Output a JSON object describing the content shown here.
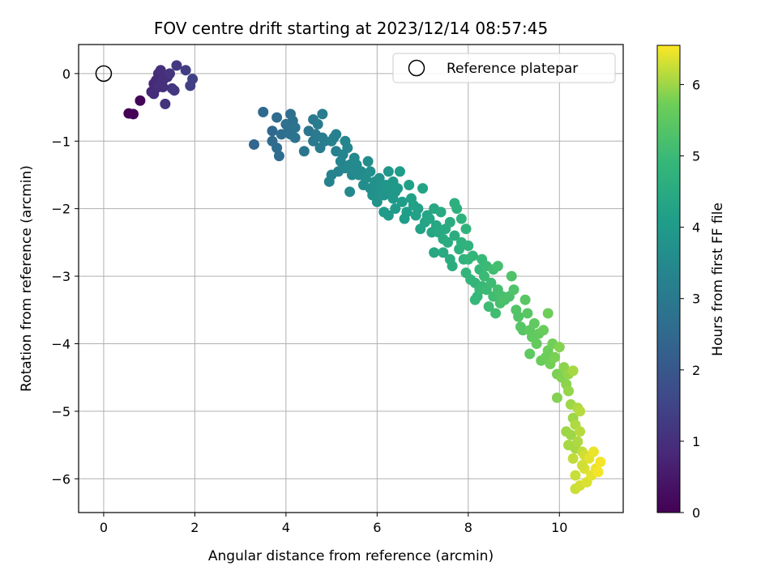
{
  "chart_data": {
    "type": "scatter",
    "title": "FOV centre drift starting at 2023/12/14 08:57:45",
    "xlabel": "Angular distance from reference (arcmin)",
    "ylabel": "Rotation from reference (arcmin)",
    "xlim": [
      -0.55,
      11.4
    ],
    "ylim": [
      -6.5,
      0.43
    ],
    "xticks": [
      0,
      2,
      4,
      6,
      8,
      10
    ],
    "yticks": [
      0,
      -1,
      -2,
      -3,
      -4,
      -5,
      -6
    ],
    "grid": true,
    "legend": {
      "location": "top-right",
      "entries": [
        "Reference platepar"
      ]
    },
    "colorbar": {
      "label": "Hours from first FF file",
      "range": [
        0,
        6.55
      ],
      "ticks": [
        0,
        1,
        2,
        3,
        4,
        5,
        6
      ],
      "colormap": "viridis"
    },
    "reference_point": {
      "name": "Reference platepar",
      "x": 0,
      "y": 0
    },
    "series": [
      {
        "points": [
          [
            0.55,
            -0.59,
            0.0
          ],
          [
            0.65,
            -0.6,
            0.05
          ],
          [
            0.8,
            -0.4,
            0.1
          ],
          [
            1.05,
            -0.27,
            0.8
          ],
          [
            1.1,
            -0.15,
            0.9
          ],
          [
            1.2,
            0.0,
            0.95
          ],
          [
            1.15,
            -0.1,
            0.9
          ],
          [
            1.25,
            0.05,
            1.0
          ],
          [
            1.3,
            -0.1,
            1.0
          ],
          [
            1.35,
            -0.45,
            1.05
          ],
          [
            1.4,
            -0.05,
            1.0
          ],
          [
            1.45,
            0.0,
            1.1
          ],
          [
            1.5,
            -0.22,
            1.15
          ],
          [
            1.55,
            -0.25,
            1.2
          ],
          [
            1.6,
            0.12,
            1.2
          ],
          [
            1.2,
            -0.2,
            1.0
          ],
          [
            1.1,
            -0.3,
            0.95
          ],
          [
            1.3,
            -0.2,
            1.0
          ],
          [
            1.8,
            0.05,
            1.3
          ],
          [
            1.9,
            -0.18,
            1.4
          ],
          [
            1.95,
            -0.08,
            1.4
          ],
          [
            3.3,
            -1.05,
            2.4
          ],
          [
            3.5,
            -0.57,
            2.5
          ],
          [
            3.7,
            -0.85,
            2.5
          ],
          [
            3.7,
            -1.0,
            2.55
          ],
          [
            3.8,
            -0.65,
            2.6
          ],
          [
            3.8,
            -1.1,
            2.6
          ],
          [
            3.85,
            -1.22,
            2.6
          ],
          [
            3.9,
            -0.9,
            2.65
          ],
          [
            4.0,
            -0.75,
            2.7
          ],
          [
            4.05,
            -0.85,
            2.7
          ],
          [
            4.1,
            -0.6,
            2.7
          ],
          [
            4.1,
            -0.9,
            2.75
          ],
          [
            4.15,
            -0.7,
            2.75
          ],
          [
            4.2,
            -0.8,
            2.8
          ],
          [
            4.2,
            -0.95,
            2.8
          ],
          [
            4.4,
            -1.15,
            2.9
          ],
          [
            4.5,
            -0.85,
            2.9
          ],
          [
            4.6,
            -0.68,
            3.0
          ],
          [
            4.6,
            -1.0,
            3.0
          ],
          [
            4.65,
            -0.9,
            3.0
          ],
          [
            4.7,
            -0.75,
            3.05
          ],
          [
            4.75,
            -1.1,
            3.05
          ],
          [
            4.8,
            -0.6,
            3.1
          ],
          [
            4.8,
            -0.95,
            3.1
          ],
          [
            4.85,
            -1.0,
            3.1
          ],
          [
            5.0,
            -1.0,
            3.2
          ],
          [
            5.05,
            -0.95,
            3.2
          ],
          [
            5.1,
            -0.9,
            3.2
          ],
          [
            5.1,
            -1.15,
            3.25
          ],
          [
            4.95,
            -1.6,
            3.3
          ],
          [
            5.0,
            -1.5,
            3.3
          ],
          [
            5.15,
            -1.45,
            3.3
          ],
          [
            5.2,
            -1.3,
            3.35
          ],
          [
            5.25,
            -1.2,
            3.35
          ],
          [
            5.3,
            -1.0,
            3.4
          ],
          [
            5.3,
            -1.4,
            3.4
          ],
          [
            5.35,
            -1.1,
            3.4
          ],
          [
            5.4,
            -1.75,
            3.45
          ],
          [
            5.4,
            -1.35,
            3.45
          ],
          [
            5.45,
            -1.5,
            3.45
          ],
          [
            5.5,
            -1.25,
            3.5
          ],
          [
            5.5,
            -1.45,
            3.5
          ],
          [
            5.55,
            -1.35,
            3.5
          ],
          [
            5.6,
            -1.5,
            3.55
          ],
          [
            5.65,
            -1.45,
            3.55
          ],
          [
            5.7,
            -1.65,
            3.6
          ],
          [
            5.75,
            -1.55,
            3.6
          ],
          [
            5.8,
            -1.3,
            3.6
          ],
          [
            5.85,
            -1.45,
            3.65
          ],
          [
            5.85,
            -1.7,
            3.65
          ],
          [
            5.9,
            -1.8,
            3.7
          ],
          [
            5.95,
            -1.6,
            3.7
          ],
          [
            6.0,
            -1.75,
            3.7
          ],
          [
            6.0,
            -1.9,
            3.75
          ],
          [
            6.05,
            -1.55,
            3.75
          ],
          [
            6.1,
            -1.7,
            3.8
          ],
          [
            6.15,
            -1.8,
            3.8
          ],
          [
            6.2,
            -1.65,
            3.85
          ],
          [
            6.25,
            -1.45,
            3.85
          ],
          [
            6.3,
            -1.75,
            3.9
          ],
          [
            6.35,
            -1.6,
            3.9
          ],
          [
            6.4,
            -1.75,
            3.9
          ],
          [
            6.45,
            -1.7,
            3.95
          ],
          [
            6.35,
            -1.85,
            3.95
          ],
          [
            6.15,
            -2.05,
            4.0
          ],
          [
            6.25,
            -2.1,
            4.0
          ],
          [
            6.4,
            -2.0,
            4.0
          ],
          [
            6.5,
            -1.45,
            4.05
          ],
          [
            6.55,
            -1.9,
            4.05
          ],
          [
            6.6,
            -2.15,
            4.1
          ],
          [
            6.65,
            -2.05,
            4.1
          ],
          [
            6.7,
            -1.65,
            4.15
          ],
          [
            6.75,
            -1.85,
            4.15
          ],
          [
            6.8,
            -1.95,
            4.2
          ],
          [
            6.85,
            -2.1,
            4.2
          ],
          [
            6.9,
            -2.0,
            4.2
          ],
          [
            6.95,
            -2.3,
            4.25
          ],
          [
            7.0,
            -1.7,
            4.25
          ],
          [
            7.05,
            -2.2,
            4.3
          ],
          [
            7.1,
            -2.1,
            4.3
          ],
          [
            7.15,
            -2.15,
            4.35
          ],
          [
            7.2,
            -2.35,
            4.35
          ],
          [
            7.25,
            -2.0,
            4.4
          ],
          [
            7.25,
            -2.65,
            4.4
          ],
          [
            7.3,
            -2.25,
            4.4
          ],
          [
            7.35,
            -2.35,
            4.45
          ],
          [
            7.4,
            -2.05,
            4.45
          ],
          [
            7.45,
            -2.45,
            4.5
          ],
          [
            7.45,
            -2.65,
            4.5
          ],
          [
            7.5,
            -2.3,
            4.5
          ],
          [
            7.55,
            -2.5,
            4.55
          ],
          [
            7.6,
            -2.2,
            4.55
          ],
          [
            7.6,
            -2.75,
            4.6
          ],
          [
            7.65,
            -2.85,
            4.6
          ],
          [
            7.7,
            -2.4,
            4.6
          ],
          [
            7.7,
            -1.92,
            4.65
          ],
          [
            7.75,
            -2.0,
            4.65
          ],
          [
            7.8,
            -2.6,
            4.7
          ],
          [
            7.85,
            -2.5,
            4.7
          ],
          [
            7.85,
            -2.15,
            4.7
          ],
          [
            7.9,
            -2.75,
            4.75
          ],
          [
            7.95,
            -2.3,
            4.75
          ],
          [
            8.0,
            -2.55,
            4.75
          ],
          [
            8.0,
            -2.75,
            4.8
          ],
          [
            7.95,
            -2.95,
            4.8
          ],
          [
            8.05,
            -3.05,
            4.85
          ],
          [
            8.1,
            -2.7,
            4.85
          ],
          [
            8.15,
            -3.1,
            4.85
          ],
          [
            8.15,
            -3.35,
            4.9
          ],
          [
            8.2,
            -3.3,
            4.9
          ],
          [
            8.25,
            -2.9,
            4.9
          ],
          [
            8.25,
            -3.2,
            4.95
          ],
          [
            8.3,
            -2.75,
            4.95
          ],
          [
            8.3,
            -3.15,
            4.95
          ],
          [
            8.35,
            -3.0,
            5.0
          ],
          [
            8.4,
            -3.2,
            5.0
          ],
          [
            8.4,
            -2.85,
            5.0
          ],
          [
            8.45,
            -3.45,
            5.05
          ],
          [
            8.5,
            -3.1,
            5.05
          ],
          [
            8.55,
            -3.3,
            5.1
          ],
          [
            8.55,
            -2.9,
            5.1
          ],
          [
            8.6,
            -3.55,
            5.1
          ],
          [
            8.65,
            -2.85,
            5.15
          ],
          [
            8.65,
            -3.2,
            5.15
          ],
          [
            8.7,
            -3.4,
            5.2
          ],
          [
            8.75,
            -3.3,
            5.2
          ],
          [
            8.8,
            -3.35,
            5.25
          ],
          [
            8.9,
            -3.3,
            5.25
          ],
          [
            8.95,
            -3.0,
            5.3
          ],
          [
            9.0,
            -3.2,
            5.3
          ],
          [
            9.05,
            -3.5,
            5.35
          ],
          [
            9.1,
            -3.6,
            5.35
          ],
          [
            9.15,
            -3.75,
            5.4
          ],
          [
            9.2,
            -3.8,
            5.4
          ],
          [
            9.25,
            -3.35,
            5.45
          ],
          [
            9.3,
            -3.55,
            5.45
          ],
          [
            9.35,
            -3.8,
            5.5
          ],
          [
            9.35,
            -4.15,
            5.5
          ],
          [
            9.4,
            -3.9,
            5.55
          ],
          [
            9.45,
            -3.7,
            5.55
          ],
          [
            9.5,
            -4.0,
            5.6
          ],
          [
            9.55,
            -3.85,
            5.6
          ],
          [
            9.6,
            -4.25,
            5.65
          ],
          [
            9.65,
            -3.8,
            5.65
          ],
          [
            9.7,
            -4.2,
            5.7
          ],
          [
            9.75,
            -3.55,
            5.7
          ],
          [
            9.75,
            -4.1,
            5.7
          ],
          [
            9.8,
            -4.3,
            5.75
          ],
          [
            9.85,
            -4.0,
            5.75
          ],
          [
            9.9,
            -4.2,
            5.8
          ],
          [
            9.95,
            -4.45,
            5.8
          ],
          [
            9.95,
            -4.8,
            5.85
          ],
          [
            10.0,
            -4.05,
            5.85
          ],
          [
            10.05,
            -4.5,
            5.85
          ],
          [
            10.1,
            -4.35,
            5.9
          ],
          [
            10.15,
            -4.6,
            5.9
          ],
          [
            10.2,
            -4.45,
            5.95
          ],
          [
            10.2,
            -4.7,
            5.95
          ],
          [
            10.25,
            -4.9,
            6.0
          ],
          [
            10.25,
            -5.35,
            6.0
          ],
          [
            10.3,
            -5.1,
            6.0
          ],
          [
            10.3,
            -4.4,
            6.05
          ],
          [
            10.35,
            -5.55,
            6.05
          ],
          [
            10.35,
            -5.2,
            6.1
          ],
          [
            10.4,
            -4.95,
            6.1
          ],
          [
            10.4,
            -5.45,
            6.1
          ],
          [
            10.45,
            -5.3,
            6.15
          ],
          [
            10.45,
            -5.0,
            6.15
          ],
          [
            10.5,
            -5.6,
            6.2
          ],
          [
            10.3,
            -5.7,
            6.2
          ],
          [
            10.35,
            -5.95,
            6.25
          ],
          [
            10.35,
            -6.15,
            6.25
          ],
          [
            10.45,
            -6.1,
            6.3
          ],
          [
            10.55,
            -5.65,
            6.3
          ],
          [
            10.55,
            -5.85,
            6.35
          ],
          [
            10.6,
            -6.05,
            6.35
          ],
          [
            10.65,
            -5.7,
            6.4
          ],
          [
            10.7,
            -5.95,
            6.4
          ],
          [
            10.75,
            -5.6,
            6.45
          ],
          [
            10.8,
            -5.85,
            6.45
          ],
          [
            10.85,
            -5.9,
            6.5
          ],
          [
            10.9,
            -5.75,
            6.5
          ],
          [
            10.15,
            -5.3,
            6.0
          ],
          [
            10.2,
            -5.5,
            6.05
          ],
          [
            10.5,
            -5.8,
            6.3
          ]
        ]
      }
    ]
  }
}
